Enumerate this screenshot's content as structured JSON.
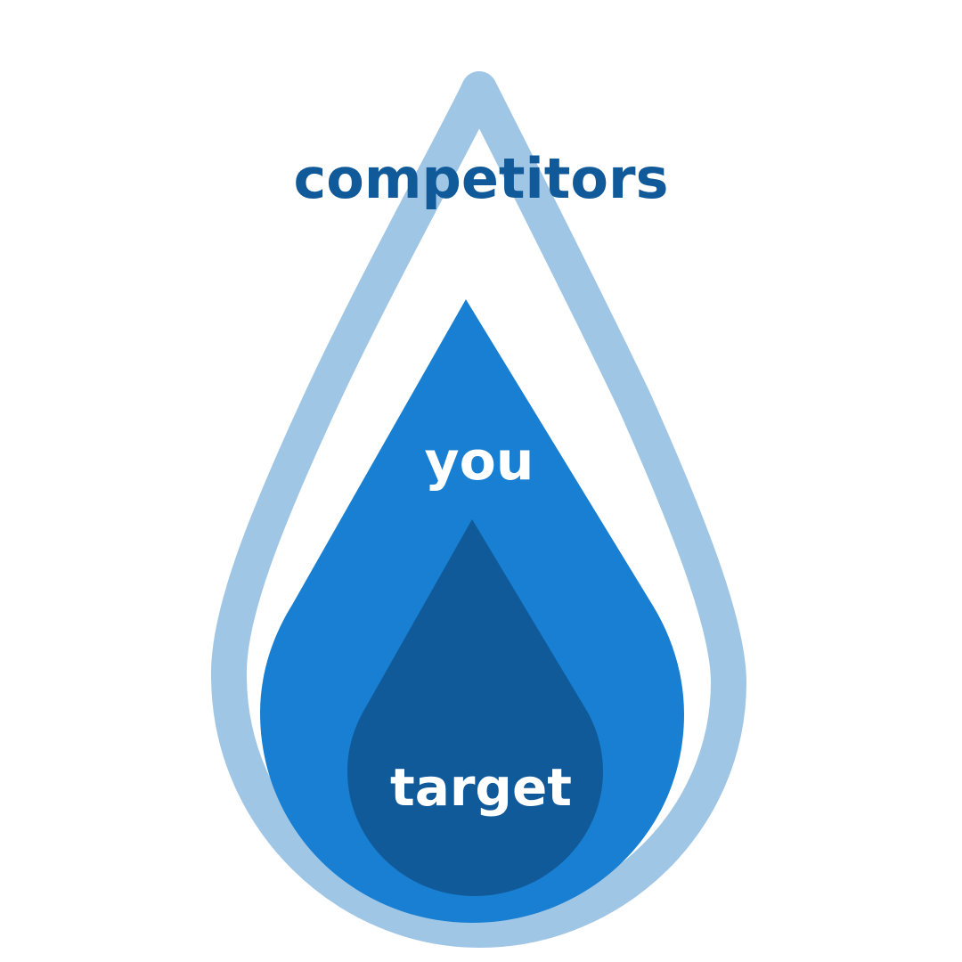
{
  "labels": {
    "competitors": "competitors",
    "you": "you",
    "target": "target"
  },
  "colors": {
    "outer_outline": "#a0c6e6",
    "competitors_text": "#105a9a",
    "middle_fill": "#187fd2",
    "inner_fill": "#105a9a",
    "inner_text": "#ffffff",
    "background": "#ffffff"
  }
}
